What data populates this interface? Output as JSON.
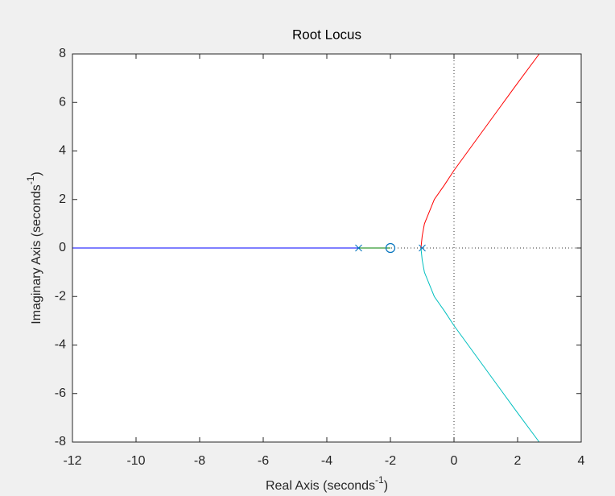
{
  "chart_data": {
    "type": "line",
    "title": "Root Locus",
    "xlabel": {
      "text": "Real Axis (seconds",
      "superscript": "-1",
      "suffix": ")"
    },
    "ylabel": {
      "text": "Imaginary Axis (seconds",
      "superscript": "-1",
      "suffix": ")"
    },
    "xlim": [
      -12,
      4
    ],
    "ylim": [
      -8,
      8
    ],
    "xticks": [
      -12,
      -10,
      -8,
      -6,
      -4,
      -2,
      0,
      2,
      4
    ],
    "yticks": [
      -8,
      -6,
      -4,
      -2,
      0,
      2,
      4,
      6,
      8
    ],
    "series": [
      {
        "color": "#0000ff",
        "x": [
          -12,
          -3
        ],
        "values": [
          0,
          0
        ]
      },
      {
        "color": "#008000",
        "x": [
          -3,
          -2
        ],
        "values": [
          0,
          0
        ]
      },
      {
        "color": "#ff0000",
        "x": [
          -1.04,
          -1.0,
          -0.93,
          -0.62,
          -0.3,
          0,
          0.5,
          1.0,
          1.5,
          2.0,
          2.68
        ],
        "values": [
          0,
          0.5,
          1,
          2,
          2.6,
          3.2,
          4.1,
          5.0,
          5.9,
          6.8,
          8
        ]
      },
      {
        "color": "#00bfbf",
        "x": [
          -1.04,
          -1.0,
          -0.93,
          -0.62,
          -0.3,
          0,
          0.5,
          1.0,
          1.5,
          2.0,
          2.68
        ],
        "values": [
          0,
          -0.5,
          -1,
          -2,
          -2.6,
          -3.2,
          -4.1,
          -5.0,
          -5.9,
          -6.8,
          -8
        ]
      }
    ],
    "poles": {
      "color": "#0072bd",
      "x": [
        -3,
        -1
      ],
      "values": [
        0,
        0
      ]
    },
    "zeros": {
      "color": "#0072bd",
      "x": [
        -2
      ],
      "values": [
        0
      ]
    }
  }
}
